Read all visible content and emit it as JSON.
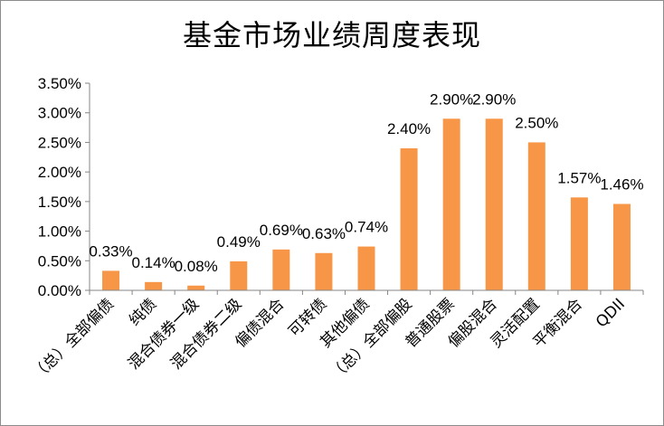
{
  "chart_data": {
    "type": "bar",
    "title": "基金市场业绩周度表现",
    "xlabel": "",
    "ylabel": "",
    "ylim": [
      0,
      0.035
    ],
    "y_ticks": [
      "0.00%",
      "0.50%",
      "1.00%",
      "1.50%",
      "2.00%",
      "2.50%",
      "3.00%",
      "3.50%"
    ],
    "y_tick_values": [
      0,
      0.005,
      0.01,
      0.015,
      0.02,
      0.025,
      0.03,
      0.035
    ],
    "categories": [
      "（总）全部偏债",
      "纯债",
      "混合债券一级",
      "混合债券二级",
      "偏债混合",
      "可转债",
      "其他偏债",
      "（总）全部偏股",
      "普通股票",
      "偏股混合",
      "灵活配置",
      "平衡混合",
      "QDII"
    ],
    "values": [
      0.0033,
      0.0014,
      0.0008,
      0.0049,
      0.0069,
      0.0063,
      0.0074,
      0.024,
      0.029,
      0.029,
      0.025,
      0.0157,
      0.0146
    ],
    "data_labels": [
      "0.33%",
      "0.14%",
      "0.08%",
      "0.49%",
      "0.69%",
      "0.63%",
      "0.74%",
      "2.40%",
      "2.90%",
      "2.90%",
      "2.50%",
      "1.57%",
      "1.46%"
    ],
    "grid": false,
    "legend": "none",
    "bar_color": "#F79646",
    "axis_color": "#868686"
  }
}
